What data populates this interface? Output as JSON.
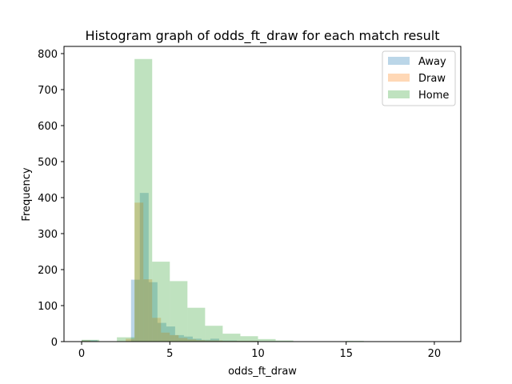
{
  "chart_data": {
    "type": "histogram",
    "title": "Histogram graph of odds_ft_draw for each match result",
    "xlabel": "odds_ft_draw",
    "ylabel": "Frequency",
    "xlim": [
      -1.0,
      21.5
    ],
    "ylim": [
      0,
      820
    ],
    "xticks": [
      0,
      5,
      10,
      15,
      20
    ],
    "yticks": [
      0,
      100,
      200,
      300,
      400,
      500,
      600,
      700,
      800
    ],
    "legend_position": "upper right",
    "series": [
      {
        "name": "Away",
        "color": "#1f77b4",
        "alpha": 0.3,
        "bins": [
          {
            "x0": 0.0,
            "x1": 0.9,
            "count": 4
          },
          {
            "x0": 2.8,
            "x1": 3.3,
            "count": 172
          },
          {
            "x0": 3.3,
            "x1": 3.8,
            "count": 413
          },
          {
            "x0": 3.8,
            "x1": 4.3,
            "count": 165
          },
          {
            "x0": 4.3,
            "x1": 4.8,
            "count": 52
          },
          {
            "x0": 4.8,
            "x1": 5.3,
            "count": 42
          },
          {
            "x0": 5.3,
            "x1": 5.8,
            "count": 18
          },
          {
            "x0": 5.8,
            "x1": 6.3,
            "count": 14
          },
          {
            "x0": 6.3,
            "x1": 6.8,
            "count": 8
          },
          {
            "x0": 6.8,
            "x1": 7.3,
            "count": 5
          },
          {
            "x0": 7.3,
            "x1": 7.8,
            "count": 8
          },
          {
            "x0": 7.8,
            "x1": 8.8,
            "count": 3
          },
          {
            "x0": 8.8,
            "x1": 10.0,
            "count": 2
          }
        ]
      },
      {
        "name": "Draw",
        "color": "#ff7f0e",
        "alpha": 0.3,
        "bins": [
          {
            "x0": 0.0,
            "x1": 0.5,
            "count": 3
          },
          {
            "x0": 2.5,
            "x1": 3.0,
            "count": 8
          },
          {
            "x0": 3.0,
            "x1": 3.5,
            "count": 386
          },
          {
            "x0": 3.5,
            "x1": 4.0,
            "count": 173
          },
          {
            "x0": 4.0,
            "x1": 4.5,
            "count": 66
          },
          {
            "x0": 4.5,
            "x1": 5.0,
            "count": 25
          },
          {
            "x0": 5.0,
            "x1": 5.5,
            "count": 18
          },
          {
            "x0": 5.5,
            "x1": 6.0,
            "count": 10
          },
          {
            "x0": 6.0,
            "x1": 6.5,
            "count": 6
          },
          {
            "x0": 6.5,
            "x1": 7.0,
            "count": 4
          },
          {
            "x0": 7.0,
            "x1": 8.0,
            "count": 3
          },
          {
            "x0": 8.0,
            "x1": 10.0,
            "count": 2
          }
        ]
      },
      {
        "name": "Home",
        "color": "#2ca02c",
        "alpha": 0.3,
        "bins": [
          {
            "x0": 0.0,
            "x1": 1.0,
            "count": 5
          },
          {
            "x0": 2.0,
            "x1": 3.0,
            "count": 12
          },
          {
            "x0": 3.0,
            "x1": 4.0,
            "count": 785
          },
          {
            "x0": 4.0,
            "x1": 5.0,
            "count": 222
          },
          {
            "x0": 5.0,
            "x1": 6.0,
            "count": 168
          },
          {
            "x0": 6.0,
            "x1": 7.0,
            "count": 94
          },
          {
            "x0": 7.0,
            "x1": 8.0,
            "count": 44
          },
          {
            "x0": 8.0,
            "x1": 9.0,
            "count": 22
          },
          {
            "x0": 9.0,
            "x1": 10.0,
            "count": 15
          },
          {
            "x0": 10.0,
            "x1": 11.0,
            "count": 7
          },
          {
            "x0": 11.0,
            "x1": 12.0,
            "count": 3
          },
          {
            "x0": 12.0,
            "x1": 13.0,
            "count": 1
          },
          {
            "x0": 14.0,
            "x1": 15.0,
            "count": 1
          },
          {
            "x0": 15.0,
            "x1": 16.0,
            "count": 2
          },
          {
            "x0": 19.0,
            "x1": 20.0,
            "count": 1
          },
          {
            "x0": 20.0,
            "x1": 21.0,
            "count": 1
          }
        ]
      }
    ]
  }
}
